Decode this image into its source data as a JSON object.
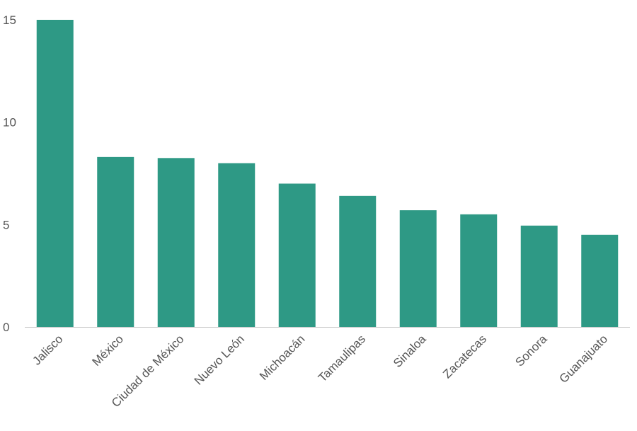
{
  "chart_data": {
    "type": "bar",
    "title": "",
    "xlabel": "",
    "ylabel": "",
    "categories": [
      "Jalisco",
      "México",
      "Ciudad de México",
      "Nuevo León",
      "Michoacán",
      "Tamaulipas",
      "Sinaloa",
      "Zacatecas",
      "Sonora",
      "Guanajuato"
    ],
    "values": [
      15.0,
      8.3,
      8.25,
      8.0,
      7.0,
      6.4,
      5.7,
      5.5,
      4.95,
      4.5
    ],
    "ylim": [
      0,
      15
    ],
    "yticks": [
      0,
      5,
      10,
      15
    ],
    "grid": false,
    "legend": "none",
    "bar_color": "#2e9985",
    "axis_color": "#cccccc"
  }
}
